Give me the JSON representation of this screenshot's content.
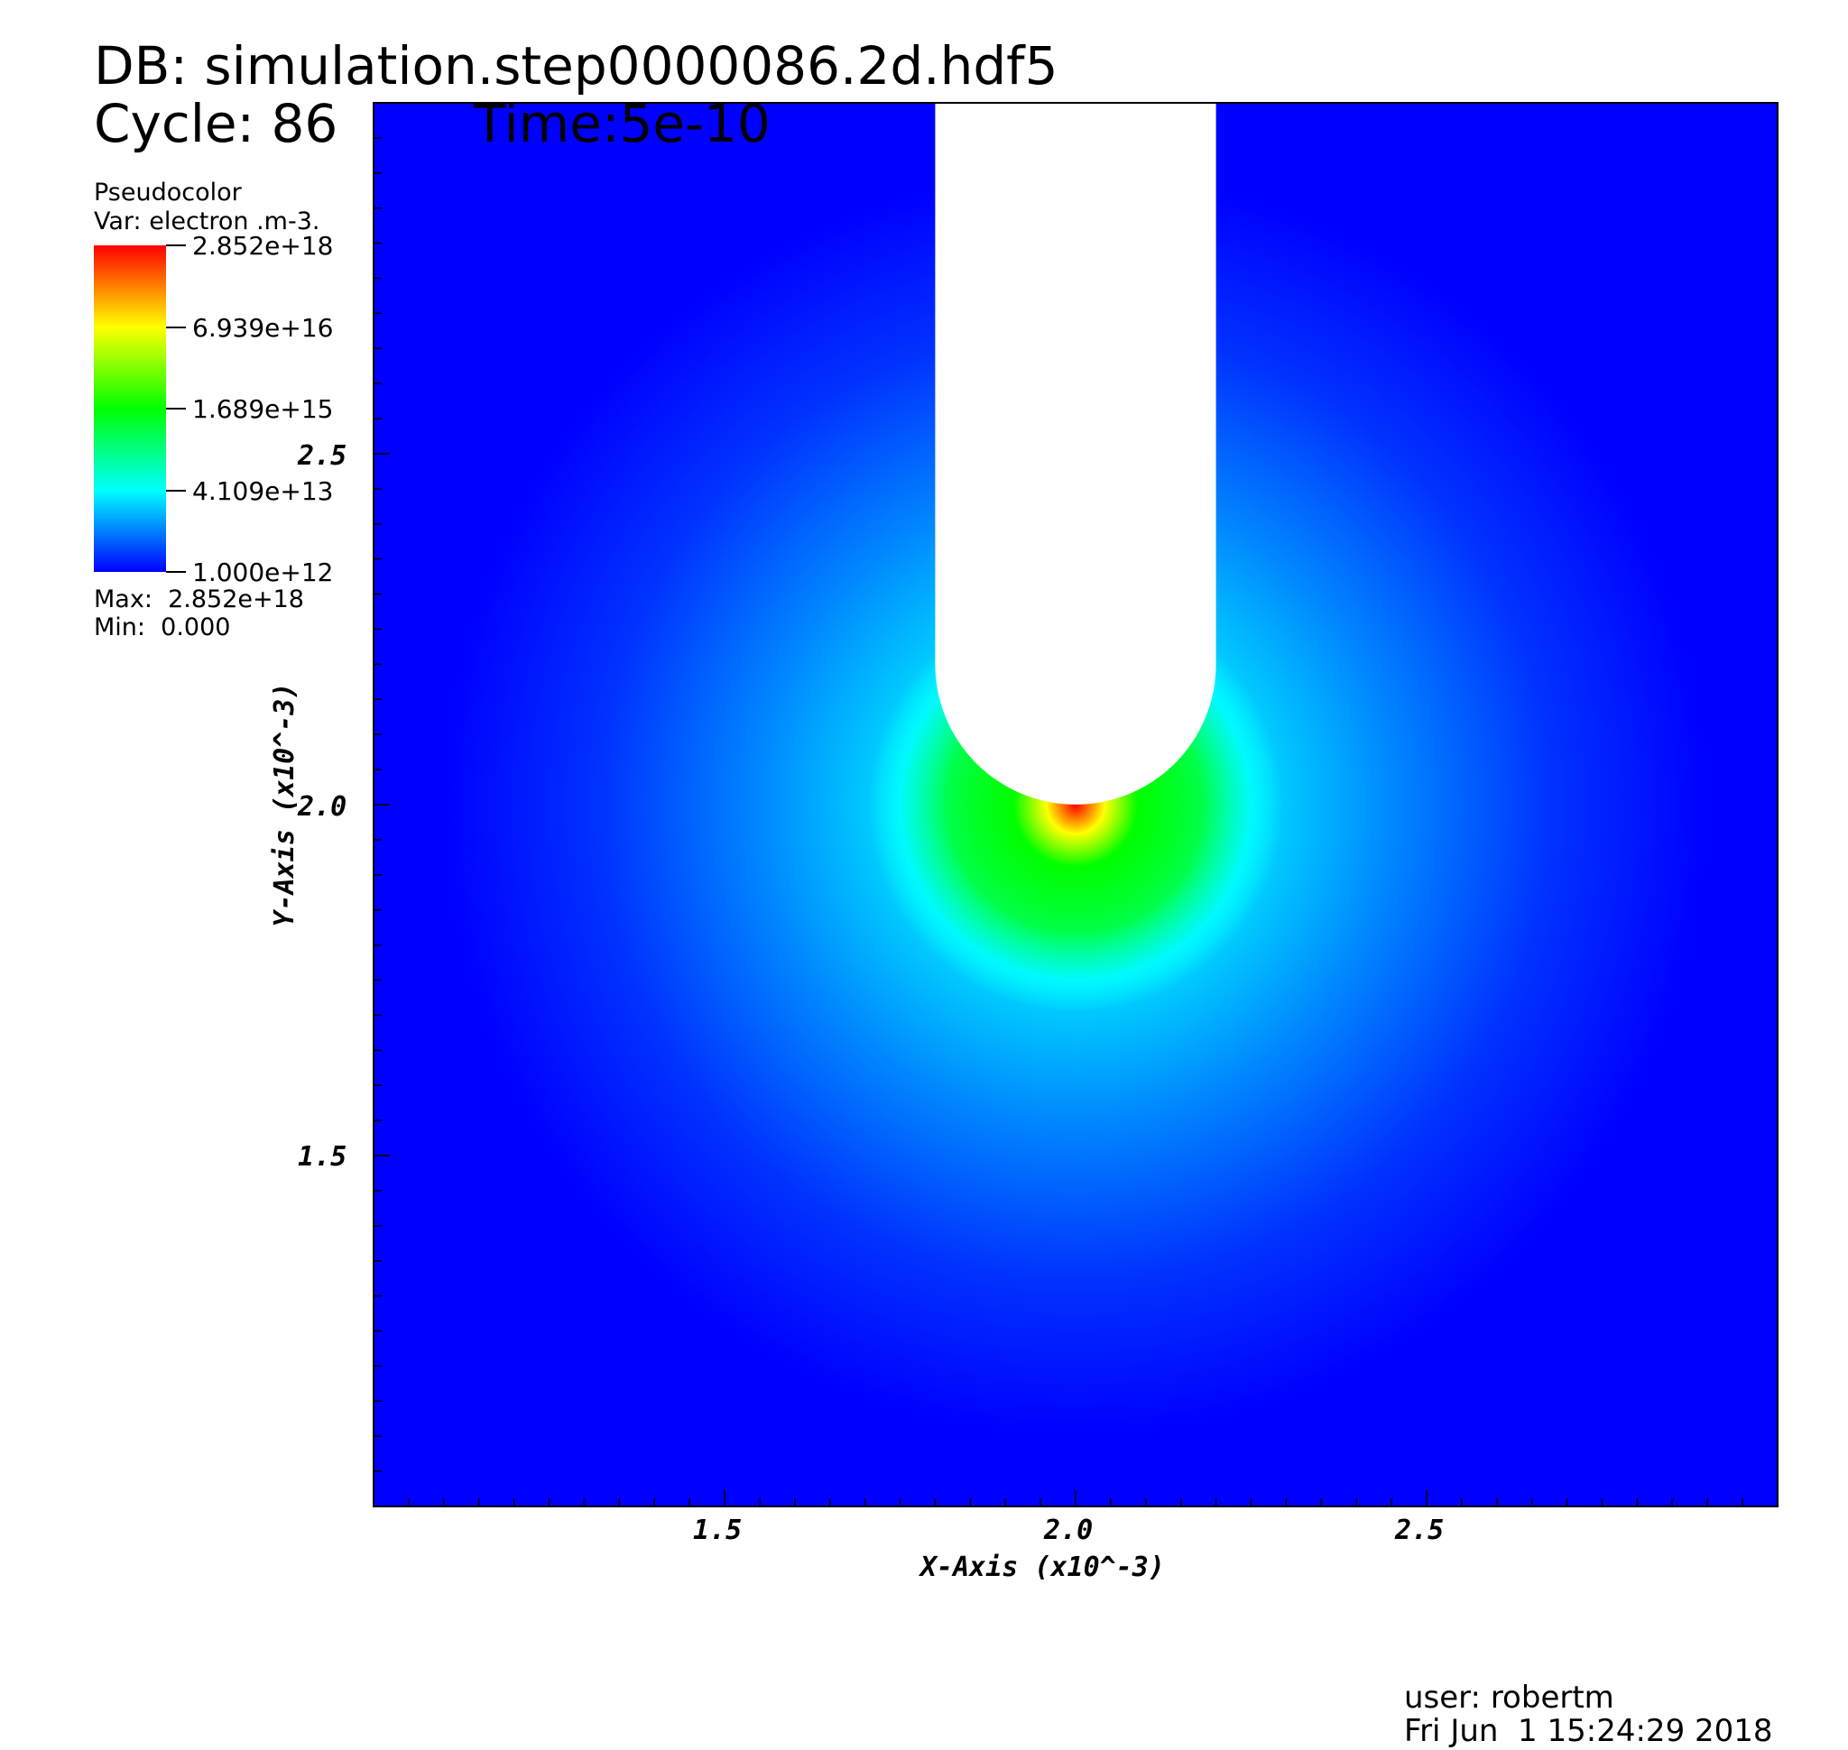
{
  "header": {
    "db_label": "DB: simulation.step0000086.2d.hdf5",
    "cycle_label": "Cycle: 86",
    "time_label": "Time:5e-10"
  },
  "legend": {
    "plot_type": "Pseudocolor",
    "variable": "Var: electron .m-3.",
    "ticks": [
      "2.852e+18",
      "6.939e+16",
      "1.689e+15",
      "4.109e+13",
      "1.000e+12"
    ],
    "max_label": "Max:  2.852e+18",
    "min_label": "Min:  0.000",
    "colormap": [
      "#0000ff",
      "#00ffff",
      "#00ff00",
      "#ffff00",
      "#ff0000"
    ]
  },
  "footer": {
    "user": "user: robertm",
    "date": "Fri Jun  1 15:24:29 2018"
  },
  "chart_data": {
    "type": "heatmap",
    "title": "",
    "variable": "electron .m-3.",
    "color_scale": "log",
    "value_range": [
      1000000000000.0,
      2.852e+18
    ],
    "data_max": 2.852e+18,
    "data_min": 0.0,
    "colorbar_ticks": [
      2.852e+18,
      6.939e+16,
      1689000000000000.0,
      41090000000000.0,
      1000000000000.0
    ],
    "xlabel": "X-Axis (x10^-3)",
    "ylabel": "Y-Axis (x10^-3)",
    "xlim": [
      1.0,
      3.0
    ],
    "ylim": [
      1.0,
      3.0
    ],
    "x_ticks": [
      "1.5",
      "2.0",
      "2.5"
    ],
    "y_ticks": [
      "2.5",
      "2.0",
      "1.5"
    ],
    "x_tick_values": [
      1.5,
      2.0,
      2.5
    ],
    "y_tick_values": [
      2.5,
      2.0,
      1.5
    ],
    "electrode": {
      "x_min": 1.8,
      "x_max": 2.2,
      "tip_center": [
        2.0,
        2.2
      ],
      "tip_radius": 0.2
    },
    "field": {
      "peak_value": 2.852e+18,
      "peak_location": [
        2.0,
        2.0
      ],
      "background_value": 1000000000000.0
    }
  }
}
